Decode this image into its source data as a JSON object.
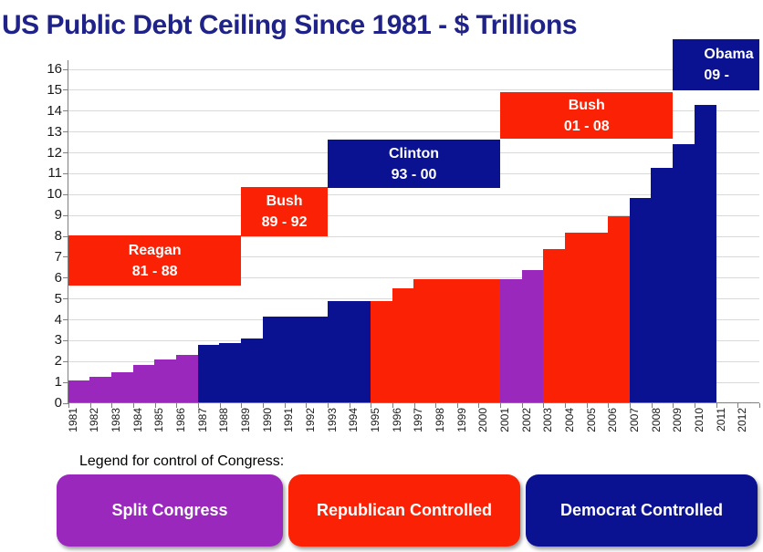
{
  "title": "US Public Debt Ceiling Since 1981 - $ Trillions",
  "colors": {
    "split": "#9A28BD",
    "republican": "#FB2105",
    "democrat": "#0A1292",
    "title_text": "#1E2289",
    "gridline": "#D9D9D9",
    "axis": "#7F7F7F",
    "tick_label": "#1A1A1A"
  },
  "chart_data": {
    "type": "bar",
    "title": "US Public Debt Ceiling Since 1981 - $ Trillions",
    "xlabel": "",
    "ylabel": "",
    "ylim": [
      0,
      16
    ],
    "ytick_step": 1,
    "grid": true,
    "legend_position": "bottom",
    "categories": [
      1981,
      1982,
      1983,
      1984,
      1985,
      1986,
      1987,
      1988,
      1989,
      1990,
      1991,
      1992,
      1993,
      1994,
      1995,
      1996,
      1997,
      1998,
      1999,
      2000,
      2001,
      2002,
      2003,
      2004,
      2005,
      2006,
      2007,
      2008,
      2009,
      2010,
      2011,
      2012
    ],
    "series": [
      {
        "name": "US public debt ceiling ($ trillions)",
        "values": [
          1.08,
          1.29,
          1.49,
          1.82,
          2.08,
          2.3,
          2.8,
          2.87,
          3.12,
          4.15,
          4.15,
          4.15,
          4.9,
          4.9,
          4.9,
          5.5,
          5.95,
          5.95,
          5.95,
          5.95,
          5.95,
          6.4,
          7.38,
          8.18,
          8.18,
          8.97,
          9.82,
          11.3,
          12.4,
          14.29,
          null,
          null
        ]
      }
    ],
    "congress_control_by_year": [
      "split",
      "split",
      "split",
      "split",
      "split",
      "split",
      "democrat",
      "democrat",
      "democrat",
      "democrat",
      "democrat",
      "democrat",
      "democrat",
      "democrat",
      "republican",
      "republican",
      "republican",
      "republican",
      "republican",
      "republican",
      "split",
      "split",
      "republican",
      "republican",
      "republican",
      "republican",
      "democrat",
      "democrat",
      "democrat",
      "democrat",
      null,
      null
    ],
    "president_labels": [
      {
        "name": "Reagan",
        "term": "81 - 88",
        "box_color": "republican",
        "start_year": 1981,
        "end_year": 1988
      },
      {
        "name": "Bush",
        "term": "89 - 92",
        "box_color": "republican",
        "start_year": 1989,
        "end_year": 1992
      },
      {
        "name": "Clinton",
        "term": "93 - 00",
        "box_color": "democrat",
        "start_year": 1993,
        "end_year": 2000
      },
      {
        "name": "Bush",
        "term": "01 - 08",
        "box_color": "republican",
        "start_year": 2001,
        "end_year": 2008
      },
      {
        "name": "Obama",
        "term": "09 -",
        "box_color": "democrat",
        "start_year": 2009,
        "end_year": 2012
      }
    ]
  },
  "legend": {
    "heading": "Legend for control of Congress:",
    "items": [
      {
        "label": "Split Congress",
        "color_key": "split"
      },
      {
        "label": "Republican Controlled",
        "color_key": "republican"
      },
      {
        "label": "Democrat Controlled",
        "color_key": "democrat"
      }
    ]
  }
}
